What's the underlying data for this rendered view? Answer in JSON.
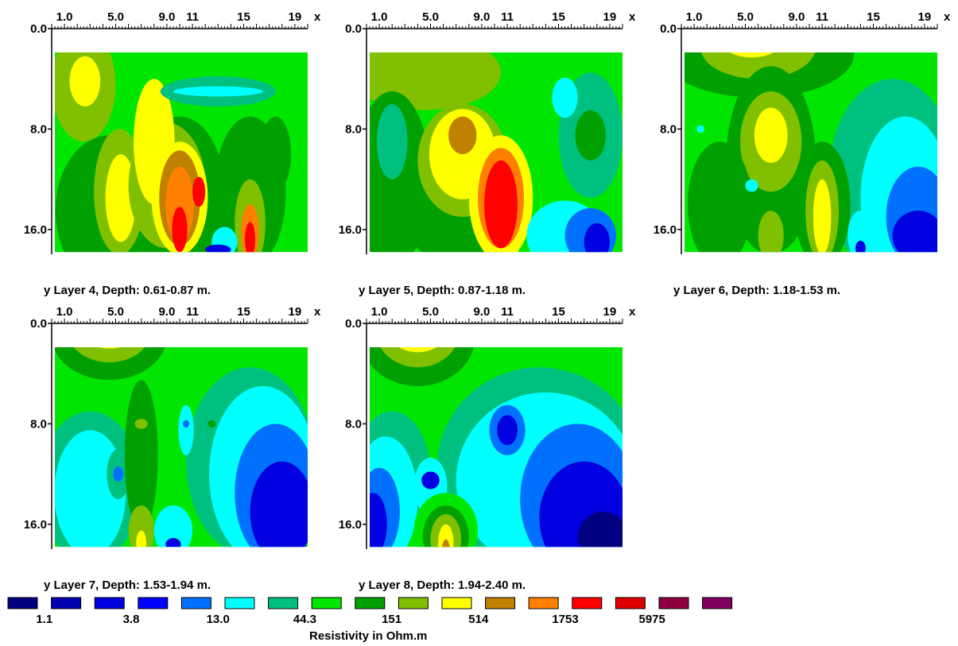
{
  "chart_data": {
    "type": "heatmap",
    "x_axis": {
      "letter": "x",
      "tick_labels": [
        "1.0",
        "5.0",
        "9.0",
        "11",
        "15",
        "19"
      ],
      "tick_values": [
        1,
        5,
        9,
        11,
        15,
        19
      ],
      "range": [
        0,
        20
      ]
    },
    "y_axis": {
      "letter": "y",
      "tick_labels": [
        "0.0",
        "8.0",
        "16.0"
      ],
      "tick_values": [
        0,
        8,
        16
      ],
      "range": [
        0,
        18
      ]
    },
    "panels": [
      {
        "caption": "Layer 4, Depth: 0.61-0.87 m.",
        "bg": "#00e600",
        "blobs": [
          {
            "x": 4.5,
            "y": 14.5,
            "rx": 4.2,
            "ry": 6.0,
            "color": "#00a000"
          },
          {
            "x": 2.5,
            "y": 4.5,
            "rx": 2.5,
            "ry": 4.5,
            "color": "#80c000"
          },
          {
            "x": 2.6,
            "y": 4.2,
            "rx": 1.2,
            "ry": 2.0,
            "color": "#ffff00"
          },
          {
            "x": 5.3,
            "y": 13.0,
            "rx": 2.0,
            "ry": 5.0,
            "color": "#80c000"
          },
          {
            "x": 5.4,
            "y": 13.5,
            "rx": 1.2,
            "ry": 3.5,
            "color": "#ffff00"
          },
          {
            "x": 10.0,
            "y": 13.0,
            "rx": 3.5,
            "ry": 6.0,
            "color": "#00a000"
          },
          {
            "x": 9.0,
            "y": 12.5,
            "rx": 3.0,
            "ry": 5.0,
            "color": "#80c000"
          },
          {
            "x": 8.0,
            "y": 9.0,
            "rx": 1.6,
            "ry": 5.0,
            "color": "#ffff00"
          },
          {
            "x": 10.0,
            "y": 13.5,
            "rx": 2.2,
            "ry": 4.5,
            "color": "#ffff00"
          },
          {
            "x": 10.0,
            "y": 13.5,
            "rx": 1.6,
            "ry": 3.8,
            "color": "#c08000"
          },
          {
            "x": 10.0,
            "y": 14.0,
            "rx": 1.1,
            "ry": 3.0,
            "color": "#ff8000"
          },
          {
            "x": 10.0,
            "y": 16.0,
            "rx": 0.6,
            "ry": 1.8,
            "color": "#ff0000"
          },
          {
            "x": 11.5,
            "y": 13.0,
            "rx": 0.5,
            "ry": 1.2,
            "color": "#ff0000"
          },
          {
            "x": 15.5,
            "y": 13.0,
            "rx": 2.8,
            "ry": 6.0,
            "color": "#00a000"
          },
          {
            "x": 15.5,
            "y": 15.5,
            "rx": 1.2,
            "ry": 3.5,
            "color": "#80c000"
          },
          {
            "x": 15.5,
            "y": 16.2,
            "rx": 0.7,
            "ry": 2.2,
            "color": "#ff8000"
          },
          {
            "x": 15.5,
            "y": 16.8,
            "rx": 0.4,
            "ry": 1.4,
            "color": "#ff0000"
          },
          {
            "x": 17.5,
            "y": 10.0,
            "rx": 1.2,
            "ry": 3.0,
            "color": "#00a000"
          },
          {
            "x": 13.0,
            "y": 5.0,
            "rx": 4.5,
            "ry": 1.2,
            "color": "#00c080"
          },
          {
            "x": 13.0,
            "y": 5.0,
            "rx": 3.5,
            "ry": 0.4,
            "color": "#00ffff"
          },
          {
            "x": 13.5,
            "y": 17.0,
            "rx": 1.0,
            "ry": 1.2,
            "color": "#00ffff"
          },
          {
            "x": 13.0,
            "y": 17.6,
            "rx": 1.0,
            "ry": 0.4,
            "color": "#0000e0"
          }
        ]
      },
      {
        "caption": "Layer 5, Depth: 0.87-1.18 m.",
        "bg": "#00e600",
        "blobs": [
          {
            "x": 4.5,
            "y": 3.5,
            "rx": 6.0,
            "ry": 3.0,
            "color": "#80c000"
          },
          {
            "x": 2.0,
            "y": 12.0,
            "rx": 3.0,
            "ry": 7.0,
            "color": "#00a000"
          },
          {
            "x": 2.0,
            "y": 9.0,
            "rx": 1.2,
            "ry": 3.0,
            "color": "#00c080"
          },
          {
            "x": 7.5,
            "y": 15.0,
            "rx": 4.5,
            "ry": 4.0,
            "color": "#00a000"
          },
          {
            "x": 7.5,
            "y": 10.5,
            "rx": 3.5,
            "ry": 4.5,
            "color": "#80c000"
          },
          {
            "x": 7.5,
            "y": 10.0,
            "rx": 2.6,
            "ry": 3.6,
            "color": "#ffff00"
          },
          {
            "x": 7.5,
            "y": 8.5,
            "rx": 1.1,
            "ry": 1.5,
            "color": "#c08000"
          },
          {
            "x": 10.5,
            "y": 13.5,
            "rx": 2.5,
            "ry": 5.0,
            "color": "#ffff00"
          },
          {
            "x": 10.5,
            "y": 13.5,
            "rx": 1.8,
            "ry": 4.0,
            "color": "#ff8000"
          },
          {
            "x": 10.5,
            "y": 14.0,
            "rx": 1.3,
            "ry": 3.5,
            "color": "#ff0000"
          },
          {
            "x": 17.5,
            "y": 8.5,
            "rx": 2.5,
            "ry": 5.0,
            "color": "#00c080"
          },
          {
            "x": 17.5,
            "y": 8.5,
            "rx": 1.2,
            "ry": 2.0,
            "color": "#00a000"
          },
          {
            "x": 15.5,
            "y": 5.5,
            "rx": 1.0,
            "ry": 1.6,
            "color": "#00ffff"
          },
          {
            "x": 15.5,
            "y": 16.5,
            "rx": 3.0,
            "ry": 2.8,
            "color": "#00ffff"
          },
          {
            "x": 17.5,
            "y": 16.5,
            "rx": 2.0,
            "ry": 2.2,
            "color": "#0070ff"
          },
          {
            "x": 18.0,
            "y": 17.0,
            "rx": 1.0,
            "ry": 1.5,
            "color": "#0000e0"
          }
        ]
      },
      {
        "caption": "Layer 6, Depth: 1.18-1.53 m.",
        "bg": "#00e600",
        "blobs": [
          {
            "x": 6.0,
            "y": 2.0,
            "rx": 7.5,
            "ry": 3.5,
            "color": "#00a000"
          },
          {
            "x": 6.0,
            "y": 1.5,
            "rx": 4.5,
            "ry": 2.5,
            "color": "#80c000"
          },
          {
            "x": 5.5,
            "y": 0.8,
            "rx": 2.5,
            "ry": 1.5,
            "color": "#ffff00"
          },
          {
            "x": 16.5,
            "y": 12.0,
            "rx": 5.0,
            "ry": 8.0,
            "color": "#00c080"
          },
          {
            "x": 17.5,
            "y": 13.5,
            "rx": 3.5,
            "ry": 6.5,
            "color": "#00ffff"
          },
          {
            "x": 18.5,
            "y": 15.0,
            "rx": 2.5,
            "ry": 4.0,
            "color": "#0070ff"
          },
          {
            "x": 18.5,
            "y": 16.5,
            "rx": 2.0,
            "ry": 2.0,
            "color": "#0000e0"
          },
          {
            "x": 7.0,
            "y": 10.5,
            "rx": 3.5,
            "ry": 7.5,
            "color": "#00a000"
          },
          {
            "x": 7.0,
            "y": 9.0,
            "rx": 2.4,
            "ry": 4.0,
            "color": "#80c000"
          },
          {
            "x": 7.0,
            "y": 8.5,
            "rx": 1.3,
            "ry": 2.2,
            "color": "#ffff00"
          },
          {
            "x": 3.0,
            "y": 14.0,
            "rx": 2.5,
            "ry": 5.0,
            "color": "#00a000"
          },
          {
            "x": 11.0,
            "y": 14.0,
            "rx": 2.2,
            "ry": 5.0,
            "color": "#00a000"
          },
          {
            "x": 11.0,
            "y": 14.5,
            "rx": 1.3,
            "ry": 4.0,
            "color": "#80c000"
          },
          {
            "x": 11.0,
            "y": 15.0,
            "rx": 0.7,
            "ry": 3.0,
            "color": "#ffff00"
          },
          {
            "x": 7.0,
            "y": 16.5,
            "rx": 1.0,
            "ry": 2.0,
            "color": "#80c000"
          },
          {
            "x": 5.5,
            "y": 12.5,
            "rx": 0.5,
            "ry": 0.5,
            "color": "#00ffff"
          },
          {
            "x": 14.0,
            "y": 16.5,
            "rx": 1.0,
            "ry": 2.0,
            "color": "#00ffff"
          },
          {
            "x": 14.0,
            "y": 17.5,
            "rx": 0.4,
            "ry": 0.6,
            "color": "#0000e0"
          },
          {
            "x": 1.5,
            "y": 8.0,
            "rx": 0.3,
            "ry": 0.3,
            "color": "#00ffff"
          }
        ]
      },
      {
        "caption": "Layer 7, Depth: 1.53-1.94 m.",
        "bg": "#00e600",
        "blobs": [
          {
            "x": 4.5,
            "y": 1.0,
            "rx": 4.5,
            "ry": 3.5,
            "color": "#00a000"
          },
          {
            "x": 4.5,
            "y": 0.5,
            "rx": 3.3,
            "ry": 2.6,
            "color": "#80c000"
          },
          {
            "x": 4.5,
            "y": 0.0,
            "rx": 2.6,
            "ry": 2.0,
            "color": "#ffff00"
          },
          {
            "x": 10.5,
            "y": 0.0,
            "rx": 2.0,
            "ry": 0.3,
            "color": "#00a000"
          },
          {
            "x": 3.0,
            "y": 13.0,
            "rx": 4.0,
            "ry": 6.0,
            "color": "#00c080"
          },
          {
            "x": 3.0,
            "y": 13.5,
            "rx": 2.8,
            "ry": 5.0,
            "color": "#00ffff"
          },
          {
            "x": 5.2,
            "y": 12.0,
            "rx": 0.9,
            "ry": 2.0,
            "color": "#00c080"
          },
          {
            "x": 5.2,
            "y": 12.0,
            "rx": 0.4,
            "ry": 0.6,
            "color": "#0070ff"
          },
          {
            "x": 7.0,
            "y": 10.5,
            "rx": 1.3,
            "ry": 6.0,
            "color": "#00a000"
          },
          {
            "x": 7.0,
            "y": 8.0,
            "rx": 0.5,
            "ry": 0.4,
            "color": "#80c000"
          },
          {
            "x": 7.0,
            "y": 16.5,
            "rx": 1.0,
            "ry": 2.0,
            "color": "#80c000"
          },
          {
            "x": 7.0,
            "y": 17.5,
            "rx": 0.4,
            "ry": 1.0,
            "color": "#ffff00"
          },
          {
            "x": 15.5,
            "y": 11.0,
            "rx": 5.0,
            "ry": 7.5,
            "color": "#00c080"
          },
          {
            "x": 16.5,
            "y": 12.0,
            "rx": 4.2,
            "ry": 7.0,
            "color": "#00ffff"
          },
          {
            "x": 17.5,
            "y": 13.5,
            "rx": 3.2,
            "ry": 5.5,
            "color": "#0070ff"
          },
          {
            "x": 18.0,
            "y": 15.0,
            "rx": 2.5,
            "ry": 4.0,
            "color": "#0000e0"
          },
          {
            "x": 9.5,
            "y": 16.5,
            "rx": 1.5,
            "ry": 2.0,
            "color": "#00ffff"
          },
          {
            "x": 9.5,
            "y": 17.6,
            "rx": 0.6,
            "ry": 0.5,
            "color": "#0000e0"
          },
          {
            "x": 10.5,
            "y": 8.5,
            "rx": 0.6,
            "ry": 2.0,
            "color": "#00ffff"
          },
          {
            "x": 10.5,
            "y": 8.0,
            "rx": 0.25,
            "ry": 0.3,
            "color": "#0070ff"
          },
          {
            "x": 12.5,
            "y": 8.0,
            "rx": 0.3,
            "ry": 0.3,
            "color": "#00a000"
          },
          {
            "x": 11.5,
            "y": 12.0,
            "rx": 0.8,
            "ry": 2.0,
            "color": "#00c080"
          }
        ]
      },
      {
        "caption": "Layer 8, Depth: 1.94-2.40 m.",
        "bg": "#00e600",
        "blobs": [
          {
            "x": 4.0,
            "y": 1.0,
            "rx": 4.5,
            "ry": 4.0,
            "color": "#00a000"
          },
          {
            "x": 4.0,
            "y": 0.5,
            "rx": 3.3,
            "ry": 3.0,
            "color": "#80c000"
          },
          {
            "x": 4.0,
            "y": 0.0,
            "rx": 2.6,
            "ry": 2.3,
            "color": "#ffff00"
          },
          {
            "x": 4.0,
            "y": 0.0,
            "rx": 1.0,
            "ry": 0.7,
            "color": "#c08000"
          },
          {
            "x": 13.5,
            "y": 11.5,
            "rx": 8.0,
            "ry": 8.0,
            "color": "#00c080"
          },
          {
            "x": 14.0,
            "y": 12.5,
            "rx": 7.0,
            "ry": 7.0,
            "color": "#00ffff"
          },
          {
            "x": 16.5,
            "y": 14.0,
            "rx": 4.5,
            "ry": 6.0,
            "color": "#0070ff"
          },
          {
            "x": 17.0,
            "y": 15.5,
            "rx": 3.5,
            "ry": 4.5,
            "color": "#0000e0"
          },
          {
            "x": 18.5,
            "y": 17.0,
            "rx": 2.0,
            "ry": 2.0,
            "color": "#000080"
          },
          {
            "x": 11.0,
            "y": 8.5,
            "rx": 1.4,
            "ry": 2.0,
            "color": "#0070ff"
          },
          {
            "x": 11.0,
            "y": 8.5,
            "rx": 0.8,
            "ry": 1.2,
            "color": "#0000e0"
          },
          {
            "x": 2.0,
            "y": 12.0,
            "rx": 3.0,
            "ry": 5.0,
            "color": "#00c080"
          },
          {
            "x": 1.5,
            "y": 14.0,
            "rx": 2.5,
            "ry": 5.0,
            "color": "#00ffff"
          },
          {
            "x": 1.0,
            "y": 15.0,
            "rx": 1.6,
            "ry": 3.5,
            "color": "#0070ff"
          },
          {
            "x": 0.5,
            "y": 16.0,
            "rx": 1.1,
            "ry": 2.5,
            "color": "#0000e0"
          },
          {
            "x": 5.0,
            "y": 13.0,
            "rx": 1.3,
            "ry": 2.3,
            "color": "#00ffff"
          },
          {
            "x": 5.0,
            "y": 12.5,
            "rx": 0.7,
            "ry": 0.7,
            "color": "#0000e0"
          },
          {
            "x": 6.2,
            "y": 16.5,
            "rx": 2.5,
            "ry": 3.0,
            "color": "#00e600"
          },
          {
            "x": 6.2,
            "y": 17.0,
            "rx": 1.8,
            "ry": 2.5,
            "color": "#00a000"
          },
          {
            "x": 6.2,
            "y": 17.2,
            "rx": 1.2,
            "ry": 2.0,
            "color": "#80c000"
          },
          {
            "x": 6.2,
            "y": 17.5,
            "rx": 0.6,
            "ry": 1.5,
            "color": "#ffff00"
          },
          {
            "x": 6.2,
            "y": 18.0,
            "rx": 0.3,
            "ry": 0.8,
            "color": "#c08000"
          }
        ]
      }
    ],
    "legend": {
      "title": "Resistivity in Ohm.m",
      "colors": [
        "#000080",
        "#0000b0",
        "#0000e0",
        "#0000ff",
        "#0070ff",
        "#00ffff",
        "#00c080",
        "#00e600",
        "#00a000",
        "#80c000",
        "#ffff00",
        "#c08000",
        "#ff8000",
        "#ff0000",
        "#e00000",
        "#900040",
        "#800060"
      ],
      "labels": [
        "1.1",
        "3.8",
        "13.0",
        "44.3",
        "151",
        "514",
        "1753",
        "5975"
      ]
    }
  }
}
